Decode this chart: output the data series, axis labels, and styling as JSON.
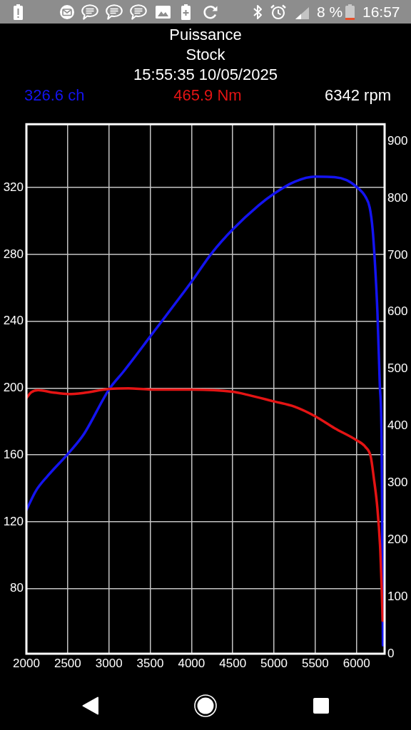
{
  "chart_data": {
    "type": "line",
    "title": "Puissance",
    "subtitle": "Stock",
    "annotations": [
      "15:55:35 10/05/2025",
      "6342 rpm",
      "8 %",
      "16:57"
    ],
    "xlim": [
      2000,
      6340
    ],
    "xticks": [
      2000,
      2500,
      3000,
      3500,
      4000,
      4500,
      5000,
      5500,
      6000
    ],
    "ylim": [
      41,
      358
    ],
    "yticks": [
      80,
      120,
      160,
      200,
      240,
      280,
      320
    ],
    "y2lim": [
      0,
      930
    ],
    "y2ticks": [
      0,
      100,
      200,
      300,
      400,
      500,
      600,
      700,
      800,
      900
    ],
    "grid": true,
    "legend": "top",
    "series": [
      {
        "name": "326.6 ch",
        "color": "#1414f0",
        "x": [
          2000,
          2115,
          2259,
          2509,
          2690,
          3005,
          3178,
          3509,
          4005,
          4241,
          4500,
          4816,
          5003,
          5247,
          5500,
          5735,
          5879,
          6000,
          6109,
          6160,
          6195,
          6224,
          6253,
          6281,
          6304,
          6310,
          6316,
          6320
        ],
        "values": [
          127,
          138.5,
          147.5,
          161,
          172,
          199.5,
          210,
          231.5,
          264,
          280.5,
          295,
          309.5,
          316.5,
          323.5,
          326.6,
          326.3,
          324.5,
          320.5,
          314.5,
          308,
          295,
          274,
          245.5,
          203,
          167.5,
          125,
          82.5,
          46
        ]
      },
      {
        "name": "465.9 Nm",
        "color": "#e41414",
        "axis": "y2",
        "x": [
          2000,
          2057,
          2143,
          2316,
          2509,
          2690,
          3005,
          3235,
          3509,
          4005,
          4500,
          4672,
          5003,
          5247,
          5500,
          5735,
          6000,
          6109,
          6172,
          6209,
          6253,
          6287,
          6304,
          6316
        ],
        "values": [
          449,
          459,
          463,
          459,
          456,
          458,
          465,
          466,
          464,
          464,
          460,
          455,
          443,
          434,
          417,
          396,
          375,
          363,
          346,
          309,
          255,
          184,
          121,
          58
        ]
      }
    ]
  }
}
